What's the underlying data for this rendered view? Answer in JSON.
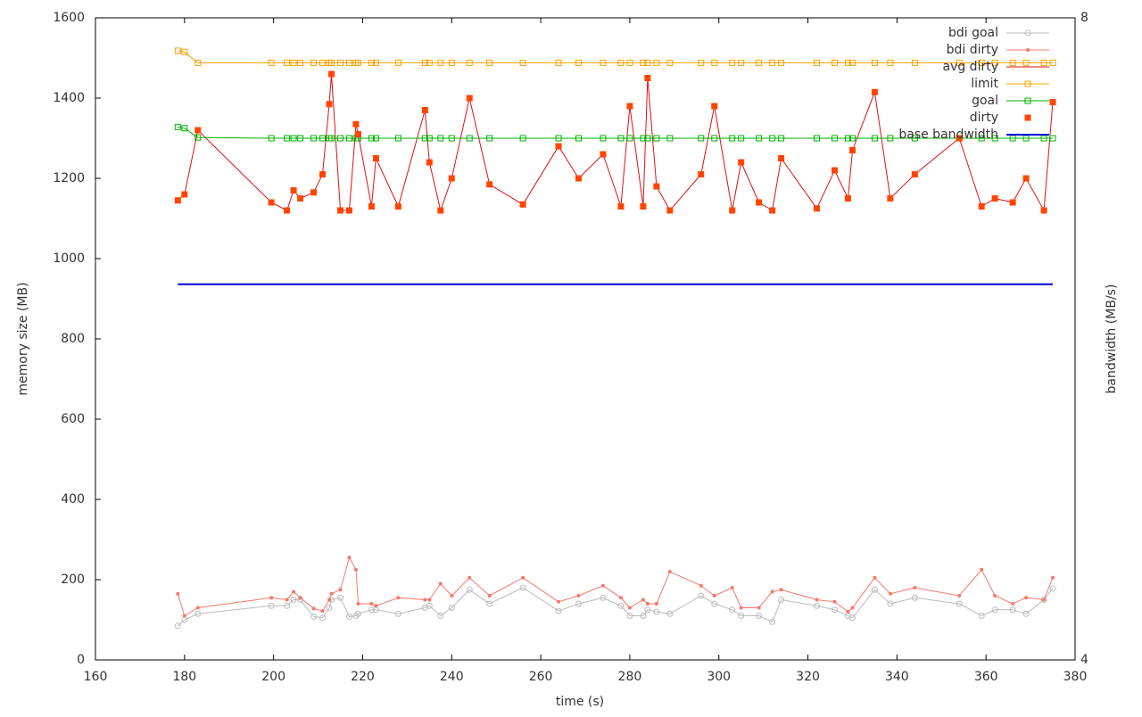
{
  "chart_data": {
    "type": "line",
    "x_label": "time (s)",
    "y_label": "memory size (MB)",
    "y2_label": "bandwidth (MB/s)",
    "xlim": [
      160,
      380
    ],
    "xticks": [
      160,
      180,
      200,
      220,
      240,
      260,
      280,
      300,
      320,
      340,
      360,
      380
    ],
    "ylim": [
      0,
      1600
    ],
    "yticks": [
      0,
      200,
      400,
      600,
      800,
      1000,
      1200,
      1400,
      1600
    ],
    "y2lim": [
      4,
      8
    ],
    "y2ticks": [
      4,
      8
    ],
    "grid": false,
    "legend": "top-right",
    "x": [
      178.5,
      180,
      183,
      199.5,
      203,
      204.5,
      206,
      209,
      211,
      212.5,
      213,
      215,
      217,
      218.5,
      219,
      222,
      223,
      228,
      234,
      235,
      237.5,
      240,
      244,
      248.5,
      256,
      264,
      268.5,
      274,
      278,
      280,
      283,
      284,
      286,
      289,
      296,
      299,
      303,
      305,
      309,
      312,
      314,
      322,
      326,
      329,
      330,
      335,
      338.5,
      344,
      354,
      359,
      362,
      366,
      369,
      373,
      375
    ],
    "series": [
      {
        "name": "bdi goal",
        "color": "#bbbbbb",
        "marker": "circle-open",
        "line": true,
        "values": [
          85,
          100,
          115,
          135,
          135,
          150,
          150,
          108,
          105,
          130,
          150,
          155,
          108,
          110,
          115,
          125,
          125,
          115,
          130,
          135,
          110,
          130,
          175,
          140,
          180,
          122,
          140,
          155,
          135,
          110,
          110,
          125,
          120,
          115,
          160,
          140,
          125,
          110,
          110,
          95,
          150,
          135,
          125,
          110,
          105,
          175,
          140,
          155,
          140,
          110,
          125,
          125,
          115,
          150,
          178
        ]
      },
      {
        "name": "bdi dirty",
        "color": "#f4786a",
        "marker": "dot",
        "line": true,
        "values": [
          165,
          110,
          130,
          155,
          150,
          170,
          155,
          128,
          122,
          150,
          165,
          175,
          255,
          225,
          140,
          140,
          135,
          155,
          150,
          150,
          190,
          160,
          205,
          160,
          205,
          145,
          160,
          185,
          155,
          130,
          150,
          140,
          140,
          220,
          185,
          160,
          180,
          130,
          130,
          170,
          175,
          150,
          145,
          120,
          130,
          205,
          165,
          180,
          160,
          225,
          160,
          140,
          155,
          150,
          205
        ]
      },
      {
        "name": "avg dirty",
        "color": "#e01010",
        "marker": "none",
        "line": true,
        "values": [
          1145,
          1160,
          1320,
          1140,
          1120,
          1170,
          1150,
          1165,
          1210,
          1385,
          1460,
          1120,
          1120,
          1335,
          1310,
          1130,
          1250,
          1130,
          1370,
          1240,
          1120,
          1200,
          1400,
          1185,
          1135,
          1280,
          1200,
          1260,
          1130,
          1380,
          1130,
          1450,
          1180,
          1120,
          1210,
          1380,
          1120,
          1240,
          1140,
          1120,
          1250,
          1125,
          1220,
          1150,
          1270,
          1415,
          1150,
          1210,
          1300,
          1130,
          1150,
          1140,
          1200,
          1120,
          1390
        ]
      },
      {
        "name": "limit",
        "color": "#f5a000",
        "marker": "square-open",
        "line": true,
        "values": [
          1518,
          1515,
          1488,
          1488,
          1488,
          1488,
          1488,
          1488,
          1488,
          1488,
          1488,
          1488,
          1488,
          1488,
          1488,
          1488,
          1488,
          1488,
          1488,
          1488,
          1488,
          1488,
          1488,
          1488,
          1488,
          1488,
          1488,
          1488,
          1488,
          1488,
          1488,
          1488,
          1488,
          1488,
          1488,
          1488,
          1488,
          1488,
          1488,
          1488,
          1488,
          1488,
          1488,
          1488,
          1488,
          1488,
          1488,
          1488,
          1488,
          1488,
          1488,
          1488,
          1488,
          1488,
          1488
        ]
      },
      {
        "name": "goal",
        "color": "#00b000",
        "marker": "square-open",
        "line": true,
        "values": [
          1328,
          1325,
          1302,
          1300,
          1300,
          1300,
          1300,
          1300,
          1300,
          1300,
          1300,
          1300,
          1300,
          1300,
          1300,
          1300,
          1300,
          1300,
          1300,
          1300,
          1300,
          1300,
          1300,
          1300,
          1300,
          1300,
          1300,
          1300,
          1300,
          1300,
          1300,
          1300,
          1300,
          1300,
          1300,
          1300,
          1300,
          1300,
          1300,
          1300,
          1300,
          1300,
          1300,
          1300,
          1300,
          1300,
          1300,
          1300,
          1300,
          1300,
          1300,
          1300,
          1300,
          1300,
          1300
        ]
      },
      {
        "name": "dirty",
        "color": "#ff4500",
        "marker": "square",
        "line": false,
        "values": [
          1145,
          1160,
          1320,
          1140,
          1120,
          1170,
          1150,
          1165,
          1210,
          1385,
          1460,
          1120,
          1120,
          1335,
          1310,
          1130,
          1250,
          1130,
          1370,
          1240,
          1120,
          1200,
          1400,
          1185,
          1135,
          1280,
          1200,
          1260,
          1130,
          1380,
          1130,
          1450,
          1180,
          1120,
          1210,
          1380,
          1120,
          1240,
          1140,
          1120,
          1250,
          1125,
          1220,
          1150,
          1270,
          1415,
          1150,
          1210,
          1300,
          1130,
          1150,
          1140,
          1200,
          1120,
          1390
        ]
      },
      {
        "name": "base bandwidth",
        "color": "#0000e0",
        "marker": "none",
        "line": true,
        "axis": "y2",
        "values": [
          6.34,
          6.34,
          6.34,
          6.34,
          6.34,
          6.34,
          6.34,
          6.34,
          6.34,
          6.34,
          6.34,
          6.34,
          6.34,
          6.34,
          6.34,
          6.34,
          6.34,
          6.34,
          6.34,
          6.34,
          6.34,
          6.34,
          6.34,
          6.34,
          6.34,
          6.34,
          6.34,
          6.34,
          6.34,
          6.34,
          6.34,
          6.34,
          6.34,
          6.34,
          6.34,
          6.34,
          6.34,
          6.34,
          6.34,
          6.34,
          6.34,
          6.34,
          6.34,
          6.34,
          6.34,
          6.34,
          6.34,
          6.34,
          6.34,
          6.34,
          6.34,
          6.34,
          6.34,
          6.34,
          6.34
        ]
      }
    ]
  }
}
